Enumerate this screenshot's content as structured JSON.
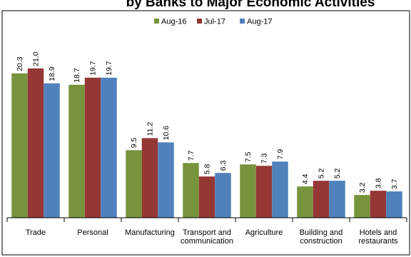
{
  "chart_data": {
    "type": "bar",
    "title": "by Banks to Major Economic Activities",
    "categories": [
      [
        "Trade"
      ],
      [
        "Personal"
      ],
      [
        "Manufacturing"
      ],
      [
        "Transport and",
        "communication"
      ],
      [
        "Agriculture"
      ],
      [
        "Building and",
        "construction"
      ],
      [
        "Hotels and",
        "restaurants"
      ]
    ],
    "series": [
      {
        "name": "Aug-16",
        "color": "#77933C",
        "values": [
          20.3,
          18.7,
          9.5,
          7.7,
          7.5,
          4.4,
          3.2
        ]
      },
      {
        "name": "Jul-17",
        "color": "#953735",
        "values": [
          21.0,
          19.7,
          11.2,
          5.8,
          7.3,
          5.2,
          3.8
        ]
      },
      {
        "name": "Aug-17",
        "color": "#4F81BD",
        "values": [
          18.9,
          19.7,
          10.6,
          6.3,
          7.9,
          5.2,
          3.7
        ]
      }
    ],
    "ylim": [
      0,
      25.1
    ],
    "grid": false,
    "legend_position": "top-center"
  }
}
